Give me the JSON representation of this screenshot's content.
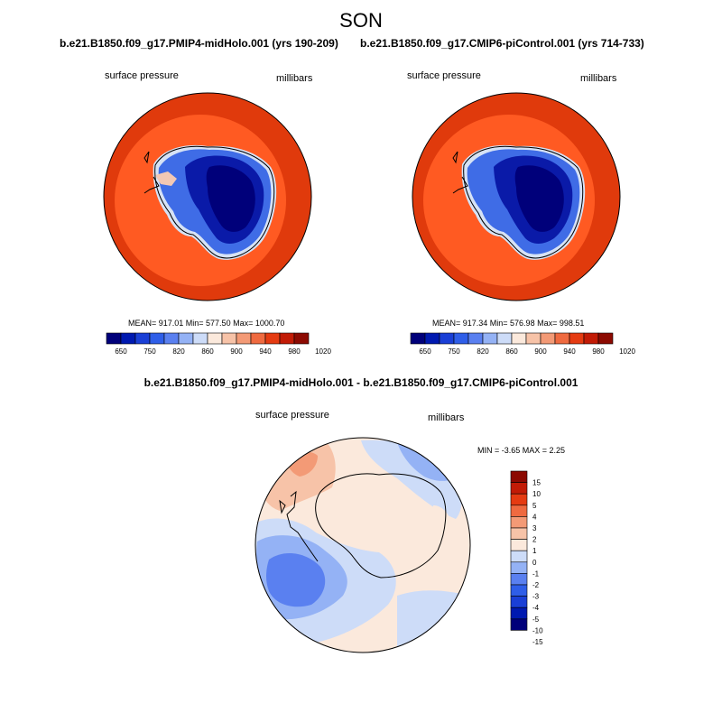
{
  "title": "SON",
  "panels": [
    {
      "case_title": "b.e21.B1850.f09_g17.PMIP4-midHolo.001 (yrs 190-209)",
      "variable": "surface pressure",
      "units": "millibars",
      "stats": "MEAN= 917.01  Min= 577.50  Max= 1000.70"
    },
    {
      "case_title": "b.e21.B1850.f09_g17.CMIP6-piControl.001 (yrs 714-733)",
      "variable": "surface pressure",
      "units": "millibars",
      "stats": "MEAN= 917.34  Min= 576.98  Max= 998.51"
    }
  ],
  "diff_panel": {
    "title": "b.e21.B1850.f09_g17.PMIP4-midHolo.001 - b.e21.B1850.f09_g17.CMIP6-piControl.001",
    "variable": "surface pressure",
    "units": "millibars",
    "stats": "MIN =  -3.65 MAX =   2.25"
  },
  "colorbar_abs": {
    "colors": [
      "#00007a",
      "#0019b0",
      "#1a3fd6",
      "#2f5ee8",
      "#5a80f0",
      "#94b2f5",
      "#cddcf8",
      "#fbe9dc",
      "#f7c3a8",
      "#f39a76",
      "#ef6a40",
      "#e53b12",
      "#c21b06",
      "#8c0a02"
    ],
    "ticks": [
      "650",
      "750",
      "820",
      "860",
      "900",
      "940",
      "980",
      "1020"
    ]
  },
  "colorbar_diff": {
    "colors": [
      "#00007a",
      "#0019b0",
      "#1a3fd6",
      "#2f5ee8",
      "#5a80f0",
      "#94b2f5",
      "#cddcf8",
      "#fbe9dc",
      "#f7c3a8",
      "#f39a76",
      "#ef6a40",
      "#e53b12",
      "#c21b06",
      "#8c0a02"
    ],
    "ticks": [
      "15",
      "10",
      "5",
      "4",
      "3",
      "2",
      "1",
      "0",
      "-1",
      "-2",
      "-3",
      "-4",
      "-5",
      "-10",
      "-15"
    ]
  },
  "map_colors": {
    "ocean_outer": "#e03a0c",
    "ocean_inner": "#ff5a22",
    "ice_light": "#d6e2f5",
    "ice_mid": "#3f6ce6",
    "ice_deep": "#0a1aa8",
    "ice_core": "#00007a",
    "diff_base": "#fbe9dc",
    "diff_neg_light": "#cddcf8",
    "diff_neg_mid": "#94b2f5",
    "diff_neg_deep": "#5a80f0",
    "diff_pos": "#f7c3a8",
    "diff_pos_deep": "#f39a76"
  }
}
